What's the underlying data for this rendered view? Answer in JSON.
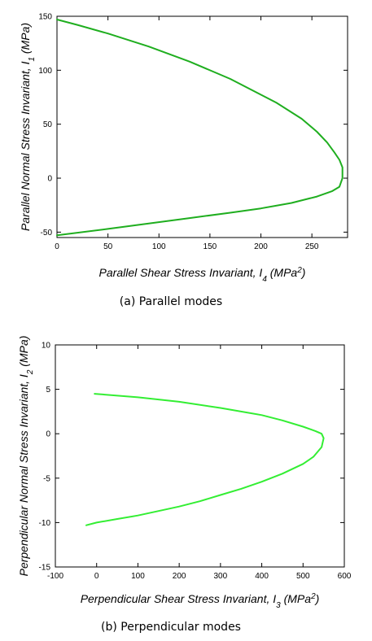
{
  "chart_data": [
    {
      "type": "line",
      "caption": "(a) Parallel modes",
      "xlabel": {
        "main": "Parallel Shear Stress Invariant, I",
        "sub": "4",
        "unit_pre": " (MPa",
        "sup": "2",
        "unit_post": ")"
      },
      "ylabel": {
        "main": "Parallel Normal Stress Invariant, I",
        "sub": "1",
        "unit": " (MPa)"
      },
      "xlim": [
        0,
        285
      ],
      "ylim": [
        -55,
        150
      ],
      "xticks": [
        0,
        50,
        100,
        150,
        200,
        250
      ],
      "yticks": [
        -50,
        0,
        50,
        100,
        150
      ],
      "grid": false,
      "series": [
        {
          "color": "#1fae1f",
          "x": [
            0,
            20,
            50,
            90,
            130,
            170,
            215,
            240,
            255,
            265,
            272,
            277,
            280,
            280,
            277,
            270,
            255,
            230,
            200,
            170,
            130,
            90,
            50,
            0
          ],
          "y": [
            147,
            142,
            134,
            122,
            108,
            92,
            70,
            55,
            43,
            33,
            24,
            17,
            10,
            0,
            -8,
            -12,
            -17,
            -23,
            -28,
            -32,
            -37,
            -42,
            -47,
            -53
          ]
        }
      ]
    },
    {
      "type": "line",
      "caption": "(b) Perpendicular modes",
      "xlabel": {
        "main": "Perpendicular Shear Stress Invariant, I",
        "sub": "3",
        "unit_pre": " (MPa",
        "sup": "2",
        "unit_post": ")"
      },
      "ylabel": {
        "main": "Perpendicular Normal Stress Invariant, I",
        "sub": "2",
        "unit": " (MPa)"
      },
      "xlim": [
        -100,
        600
      ],
      "ylim": [
        -15,
        10
      ],
      "xticks": [
        -100,
        0,
        100,
        200,
        300,
        400,
        500,
        600
      ],
      "yticks": [
        -15,
        -10,
        -5,
        0,
        5,
        10
      ],
      "grid": false,
      "series": [
        {
          "color": "#33ee33",
          "x": [
            -5,
            100,
            200,
            300,
            400,
            450,
            500,
            530,
            545,
            550,
            545,
            525,
            500,
            450,
            400,
            350,
            300,
            250,
            200,
            150,
            100,
            50,
            0,
            -25
          ],
          "y": [
            4.5,
            4.1,
            3.6,
            2.9,
            2.1,
            1.5,
            0.8,
            0.3,
            0,
            -0.5,
            -1.5,
            -2.6,
            -3.4,
            -4.5,
            -5.4,
            -6.2,
            -6.9,
            -7.6,
            -8.2,
            -8.7,
            -9.2,
            -9.6,
            -10.0,
            -10.3
          ]
        }
      ]
    }
  ]
}
